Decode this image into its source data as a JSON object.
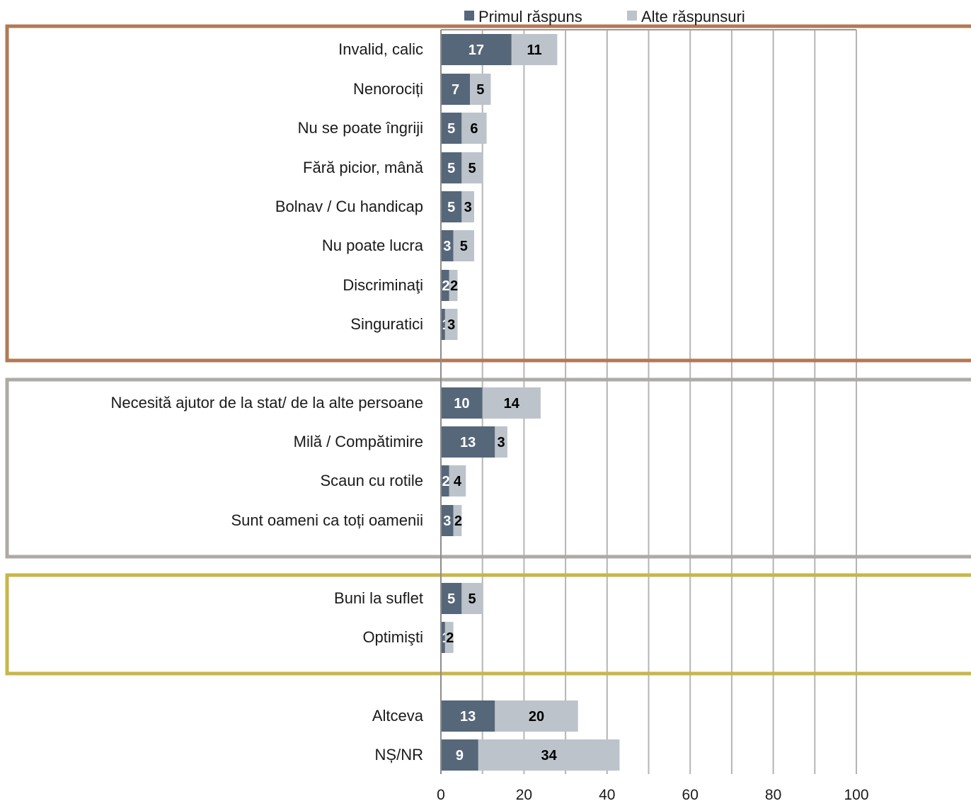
{
  "chart_data": {
    "type": "bar",
    "orientation": "horizontal",
    "stacked": true,
    "legend": {
      "position": "top",
      "items": [
        "Primul răspuns",
        "Alte răspunsuri"
      ]
    },
    "categories": [
      "Invalid, calic",
      "Nenorociți",
      "Nu se poate îngriji",
      "Fără picior, mână",
      "Bolnav / Cu handicap",
      "Nu poate lucra",
      "Discriminaţi",
      "Singuratici",
      "Necesită ajutor de la stat/ de la alte persoane",
      "Milă / Compătimire",
      "Scaun cu rotile",
      "Sunt oameni ca toți oamenii",
      "Buni la suflet",
      "Optimişti",
      "Altceva",
      "NȘ/NR"
    ],
    "series": [
      {
        "name": "Primul răspuns",
        "color": "#56677a",
        "label_color": "#ffffff",
        "values": [
          17,
          7,
          5,
          5,
          5,
          3,
          2,
          1,
          10,
          13,
          2,
          3,
          5,
          1,
          13,
          9
        ]
      },
      {
        "name": "Alte răspunsuri",
        "color": "#bcc3cb",
        "label_color": "#000000",
        "values": [
          11,
          5,
          6,
          5,
          3,
          5,
          2,
          3,
          14,
          3,
          4,
          2,
          5,
          2,
          20,
          34
        ]
      }
    ],
    "groups": [
      {
        "categories": [
          0,
          7
        ],
        "border_color": "#b07a56"
      },
      {
        "categories": [
          8,
          11
        ],
        "border_color": "#aeaaa4"
      },
      {
        "categories": [
          12,
          13
        ],
        "border_color": "#c8b64a"
      }
    ],
    "xlim": [
      0,
      100
    ],
    "xticks": [
      0,
      20,
      40,
      60,
      80,
      100
    ],
    "xlabel": "",
    "ylabel": "",
    "grid": true
  }
}
